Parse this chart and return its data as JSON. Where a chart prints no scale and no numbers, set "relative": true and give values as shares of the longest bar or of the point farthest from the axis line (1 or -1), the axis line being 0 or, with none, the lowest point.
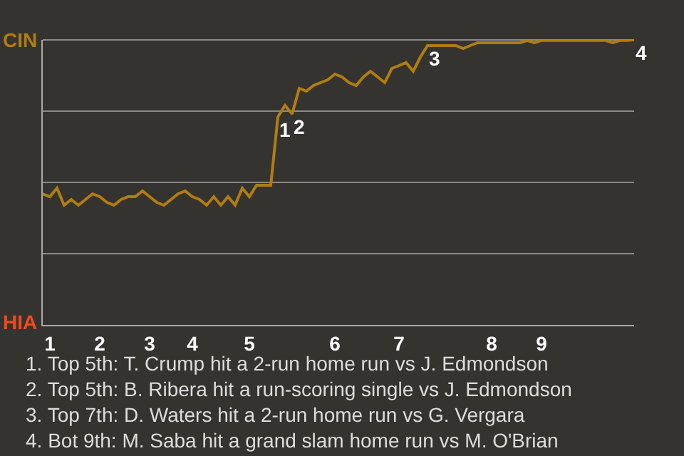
{
  "chart_data": {
    "type": "line",
    "relative": true,
    "categories": [
      null,
      "1",
      null,
      null,
      null,
      null,
      null,
      null,
      "2",
      null,
      null,
      null,
      null,
      null,
      null,
      "3",
      null,
      null,
      null,
      null,
      null,
      "4",
      null,
      null,
      null,
      null,
      null,
      null,
      null,
      "5",
      null,
      null,
      null,
      null,
      null,
      null,
      null,
      null,
      null,
      null,
      null,
      "6",
      null,
      null,
      null,
      null,
      null,
      null,
      null,
      null,
      "7",
      null,
      null,
      null,
      null,
      null,
      null,
      null,
      null,
      null,
      null,
      null,
      null,
      "8",
      null,
      null,
      null,
      null,
      null,
      null,
      "9",
      null,
      null,
      null,
      null,
      null,
      null,
      null,
      null,
      null,
      null,
      null,
      null,
      null
    ],
    "grid": "y",
    "marker": "none",
    "line_style": "solid",
    "series": [
      {
        "color": "#b07d10",
        "values": [
          0.46,
          0.45,
          0.48,
          0.42,
          0.44,
          0.42,
          0.44,
          0.46,
          0.45,
          0.43,
          0.42,
          0.44,
          0.45,
          0.45,
          0.47,
          0.45,
          0.43,
          0.42,
          0.44,
          0.46,
          0.47,
          0.45,
          0.44,
          0.42,
          0.45,
          0.42,
          0.45,
          0.42,
          0.48,
          0.45,
          0.49,
          0.49,
          0.49,
          0.73,
          0.77,
          0.74,
          0.83,
          0.82,
          0.84,
          0.85,
          0.86,
          0.88,
          0.87,
          0.85,
          0.84,
          0.87,
          0.89,
          0.87,
          0.85,
          0.9,
          0.91,
          0.92,
          0.89,
          0.94,
          0.98,
          0.98,
          0.98,
          0.98,
          0.98,
          0.97,
          0.98,
          0.99,
          0.99,
          0.99,
          0.99,
          0.99,
          0.99,
          0.99,
          0.998,
          0.99,
          0.998,
          0.998,
          0.998,
          0.998,
          0.998,
          0.998,
          0.998,
          0.998,
          0.998,
          0.998,
          0.99,
          0.998,
          0.998,
          1
        ]
      }
    ],
    "annotations": [
      {
        "text": "1",
        "y": 0.73
      },
      {
        "text": "2",
        "y": 0.74
      },
      {
        "text": "3",
        "y": 0.98
      },
      {
        "text": "4",
        "y": 1
      },
      "CIN",
      "HIA",
      "1. Top 5th: T. Crump hit a 2-run home run vs J. Edmondson",
      "2. Top 5th: B. Ribera hit a run-scoring single vs J. Edmondson",
      "3. Top 7th: D. Waters hit a 2-run home run vs G. Vergara",
      "4. Bot 9th: M. Saba hit a grand slam home run vs M. O'Brian"
    ]
  }
}
